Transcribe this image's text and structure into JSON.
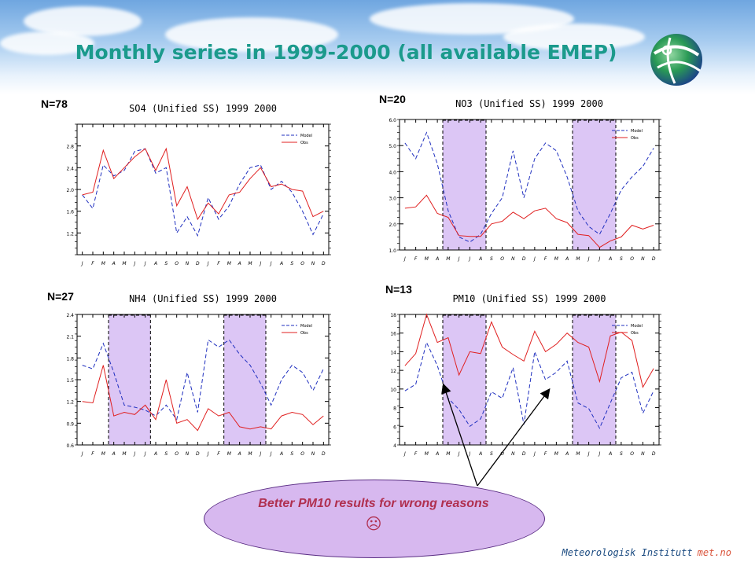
{
  "slide": {
    "title": "Monthly series in 1999-2000 (all available EMEP)",
    "callout_text": "Better PM10 results for wrong reasons",
    "callout_symbol": "☹",
    "footer_institute": "Meteorologisk Institutt",
    "footer_site": "met.no",
    "colors": {
      "title": "#1b9a8c",
      "model": "#1f2fbf",
      "obs": "#e02020",
      "shade": "#dcc6f5",
      "callout": "#d7b8ef"
    }
  },
  "chart_data": [
    {
      "id": "so4",
      "type": "line",
      "n_label": "N=78",
      "title": "SO4 (Unified SS) 1999 2000",
      "x": [
        "J",
        "F",
        "M",
        "A",
        "M",
        "J",
        "J",
        "A",
        "S",
        "O",
        "N",
        "D",
        "J",
        "F",
        "M",
        "A",
        "M",
        "J",
        "J",
        "A",
        "S",
        "O",
        "N",
        "D"
      ],
      "ylim": [
        0.8,
        3.2
      ],
      "yticks": [
        "1.2",
        "1.6",
        "2.0",
        "2.4",
        "2.8"
      ],
      "yticks_values": [
        1.2,
        1.6,
        2.0,
        2.4,
        2.8
      ],
      "legend": [
        "Model",
        "Obs"
      ],
      "shaded": [],
      "series": [
        {
          "name": "Model",
          "values": [
            1.9,
            1.65,
            2.45,
            2.25,
            2.35,
            2.7,
            2.75,
            2.3,
            2.4,
            1.2,
            1.5,
            1.15,
            1.85,
            1.45,
            1.7,
            2.1,
            2.4,
            2.45,
            2.0,
            2.15,
            1.95,
            1.6,
            1.17,
            1.55
          ]
        },
        {
          "name": "Obs",
          "values": [
            1.9,
            1.95,
            2.72,
            2.2,
            2.4,
            2.6,
            2.75,
            2.35,
            2.75,
            1.7,
            2.05,
            1.45,
            1.75,
            1.55,
            1.9,
            1.95,
            2.2,
            2.4,
            2.05,
            2.1,
            2.0,
            1.97,
            1.5,
            1.6
          ]
        }
      ]
    },
    {
      "id": "no3",
      "type": "line",
      "n_label": "N=20",
      "title": "NO3 (Unified SS) 1999 2000",
      "x": [
        "J",
        "F",
        "M",
        "A",
        "M",
        "J",
        "J",
        "A",
        "S",
        "O",
        "N",
        "D",
        "J",
        "F",
        "M",
        "A",
        "M",
        "J",
        "J",
        "A",
        "S",
        "O",
        "N",
        "D"
      ],
      "ylim": [
        1.0,
        6.0
      ],
      "yticks": [
        "1.0",
        "2.0",
        "3.0",
        "4.0",
        "5.0",
        "6.0"
      ],
      "yticks_values": [
        1.0,
        2.0,
        3.0,
        4.0,
        5.0,
        6.0
      ],
      "legend": [
        "Model",
        "Obs"
      ],
      "shaded": [
        [
          4,
          8
        ],
        [
          16,
          20
        ]
      ],
      "series": [
        {
          "name": "Model",
          "values": [
            5.1,
            4.5,
            5.5,
            4.3,
            2.5,
            1.5,
            1.3,
            1.6,
            2.4,
            3.0,
            4.8,
            3.0,
            4.5,
            5.1,
            4.8,
            3.8,
            2.5,
            1.9,
            1.6,
            2.4,
            3.3,
            3.8,
            4.2,
            4.9
          ]
        },
        {
          "name": "Obs",
          "values": [
            2.6,
            2.65,
            3.1,
            2.4,
            2.25,
            1.55,
            1.52,
            1.52,
            2.0,
            2.1,
            2.45,
            2.2,
            2.5,
            2.6,
            2.2,
            2.05,
            1.6,
            1.55,
            1.1,
            1.35,
            1.5,
            1.95,
            1.8,
            1.95
          ]
        }
      ]
    },
    {
      "id": "nh4",
      "type": "line",
      "n_label": "N=27",
      "title": "NH4 (Unified SS) 1999 2000",
      "x": [
        "J",
        "F",
        "M",
        "A",
        "M",
        "J",
        "J",
        "A",
        "S",
        "O",
        "N",
        "D",
        "J",
        "F",
        "M",
        "A",
        "M",
        "J",
        "J",
        "A",
        "S",
        "O",
        "N",
        "D"
      ],
      "ylim": [
        0.6,
        2.4
      ],
      "yticks": [
        "0.6",
        "0.9",
        "1.2",
        "1.5",
        "1.8",
        "2.1",
        "2.4"
      ],
      "yticks_values": [
        0.6,
        0.9,
        1.2,
        1.5,
        1.8,
        2.1,
        2.4
      ],
      "legend": [
        "Model",
        "Obs"
      ],
      "shaded": [
        [
          3,
          7
        ],
        [
          14,
          18
        ]
      ],
      "series": [
        {
          "name": "Model",
          "values": [
            1.7,
            1.65,
            2.0,
            1.6,
            1.15,
            1.12,
            1.08,
            1.0,
            1.15,
            0.95,
            1.6,
            1.05,
            2.05,
            1.95,
            2.05,
            1.85,
            1.7,
            1.45,
            1.15,
            1.5,
            1.7,
            1.6,
            1.35,
            1.65
          ]
        },
        {
          "name": "Obs",
          "values": [
            1.2,
            1.18,
            1.7,
            1.0,
            1.05,
            1.02,
            1.15,
            0.95,
            1.5,
            0.9,
            0.95,
            0.8,
            1.1,
            1.0,
            1.05,
            0.85,
            0.82,
            0.85,
            0.82,
            1.0,
            1.05,
            1.02,
            0.88,
            1.0
          ]
        }
      ]
    },
    {
      "id": "pm10",
      "type": "line",
      "n_label": "N=13",
      "title": "PM10 (Unified SS) 1999 2000",
      "x": [
        "J",
        "F",
        "M",
        "A",
        "M",
        "J",
        "J",
        "A",
        "S",
        "O",
        "N",
        "D",
        "J",
        "F",
        "M",
        "A",
        "M",
        "J",
        "J",
        "A",
        "S",
        "O",
        "N",
        "D"
      ],
      "ylim": [
        4,
        18
      ],
      "yticks": [
        "4",
        "6",
        "8",
        "10",
        "12",
        "14",
        "16",
        "18"
      ],
      "yticks_values": [
        4,
        6,
        8,
        10,
        12,
        14,
        16,
        18
      ],
      "legend": [
        "Model",
        "Obs"
      ],
      "shaded": [
        [
          4,
          8
        ],
        [
          16,
          20
        ]
      ],
      "series": [
        {
          "name": "Model",
          "values": [
            9.8,
            10.5,
            15.0,
            12.5,
            9.0,
            7.8,
            6.0,
            6.8,
            9.7,
            9.0,
            12.3,
            6.2,
            14.0,
            11.0,
            11.8,
            13.0,
            8.5,
            7.9,
            5.8,
            8.5,
            11.2,
            11.8,
            7.4,
            9.8
          ]
        },
        {
          "name": "Obs",
          "values": [
            12.5,
            13.8,
            18.0,
            15.0,
            15.5,
            11.5,
            14.0,
            13.8,
            17.2,
            14.5,
            13.7,
            13.0,
            16.2,
            14.0,
            14.8,
            16.0,
            15.0,
            14.5,
            10.8,
            15.7,
            16.1,
            15.2,
            10.2,
            12.2
          ]
        }
      ]
    }
  ]
}
